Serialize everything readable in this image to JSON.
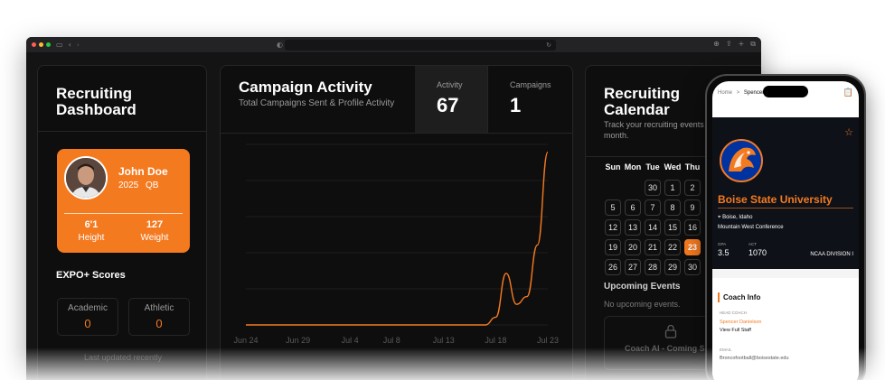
{
  "browser": {
    "dots": [
      "#ff5f57",
      "#febc2e",
      "#28c840"
    ]
  },
  "left": {
    "title": "Recruiting Dashboard",
    "profile": {
      "name": "John Doe",
      "year": "2025",
      "position": "QB",
      "height_value": "6'1",
      "height_label": "Height",
      "weight_value": "127",
      "weight_label": "Weight"
    },
    "expo_title": "EXPO+ Scores",
    "scores": [
      {
        "label": "Academic",
        "value": "0"
      },
      {
        "label": "Athletic",
        "value": "0"
      }
    ],
    "updated": "Last updated recently"
  },
  "campaign": {
    "title": "Campaign Activity",
    "subtitle": "Total Campaigns Sent & Profile Activity",
    "tabs": [
      {
        "label": "Activity",
        "value": "67"
      },
      {
        "label": "Campaigns",
        "value": "1"
      }
    ]
  },
  "chart_data": {
    "type": "line",
    "categories": [
      "Jun 24",
      "Jun 29",
      "Jul 4",
      "Jul 8",
      "Jul 13",
      "Jul 18",
      "Jul 23"
    ],
    "x": [
      "Jun 24",
      "Jun 29",
      "Jul 4",
      "Jul 8",
      "Jul 13",
      "Jul 17",
      "Jul 18",
      "Jul 19",
      "Jul 20",
      "Jul 21",
      "Jul 22",
      "Jul 23"
    ],
    "values": [
      0,
      0,
      0,
      0,
      0,
      0,
      3,
      20,
      8,
      11,
      31,
      67
    ],
    "ylim": [
      0,
      70
    ],
    "grid": true,
    "color": "#f47a20"
  },
  "calendar": {
    "title": "Recruiting Calendar",
    "subtitle": "Track your recruiting events this month.",
    "days": [
      "Sun",
      "Mon",
      "Tue",
      "Wed",
      "Thu"
    ],
    "weeks": [
      [
        "",
        "",
        "30",
        "1",
        "2"
      ],
      [
        "5",
        "6",
        "7",
        "8",
        "9"
      ],
      [
        "12",
        "13",
        "14",
        "15",
        "16"
      ],
      [
        "19",
        "20",
        "21",
        "22",
        "23"
      ],
      [
        "26",
        "27",
        "28",
        "29",
        "30"
      ]
    ],
    "today": "23",
    "upcoming_title": "Upcoming Events",
    "upcoming_empty": "No upcoming events.",
    "coach_ai": "Coach AI - Coming Soon"
  },
  "phone": {
    "breadcrumb_home": "Home",
    "breadcrumb_sep": ">",
    "breadcrumb_current": "Spencer",
    "university": "Boise State University",
    "location": "Boise, Idaho",
    "conference": "Mountain West Conference",
    "gpa_label": "GPA",
    "gpa": "3.5",
    "act_label": "ACT",
    "act": "1070",
    "division": "NCAA DIVISION I",
    "coach_info_title": "Coach Info",
    "head_coach_label": "HEAD COACH",
    "head_coach": "Spencer Danielson",
    "view_staff": "View Full Staff",
    "email_label": "EMAIL",
    "email": "Broncofootball@boisestate.edu"
  }
}
